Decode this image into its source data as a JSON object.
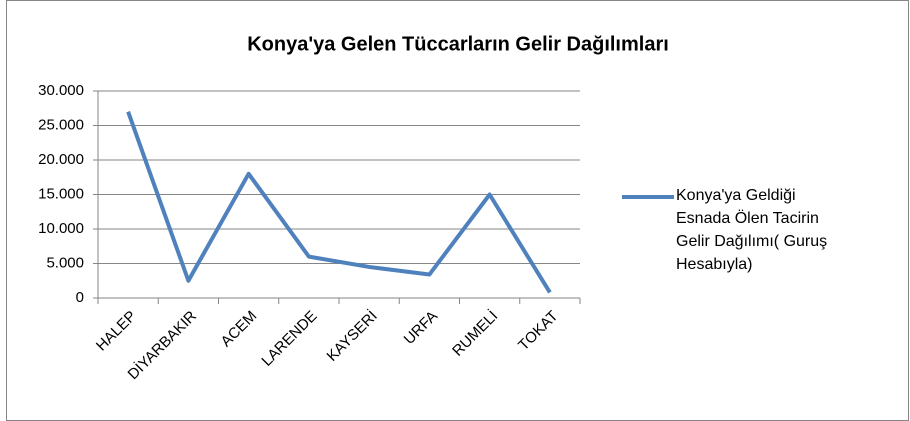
{
  "chart_data": {
    "type": "line",
    "title": "Konya'ya Gelen Tüccarların Gelir Dağılımları",
    "categories": [
      "HALEP",
      "DİYARBAKIR",
      "ACEM",
      "LARENDE",
      "KAYSERİ",
      "URFA",
      "RUMELİ",
      "TOKAT"
    ],
    "series": [
      {
        "name": "Konya'ya Geldiği Esnada Ölen Tacirin Gelir Dağılımı( Guruş Hesabıyla)",
        "color": "#4f81bd",
        "values": [
          27000,
          2500,
          18000,
          6000,
          4500,
          3400,
          15000,
          800
        ]
      }
    ],
    "ylim": [
      0,
      30000
    ],
    "yticks": [
      0,
      {
        "value": 5000,
        "label": "5.000"
      },
      {
        "value": 10000,
        "label": "10.000"
      },
      {
        "value": 15000,
        "label": "15.000"
      },
      {
        "value": 20000,
        "label": "20.000"
      },
      {
        "value": 25000,
        "label": "25.000"
      },
      {
        "value": 30000,
        "label": "30.000"
      }
    ],
    "grid": true,
    "legend": "right"
  }
}
